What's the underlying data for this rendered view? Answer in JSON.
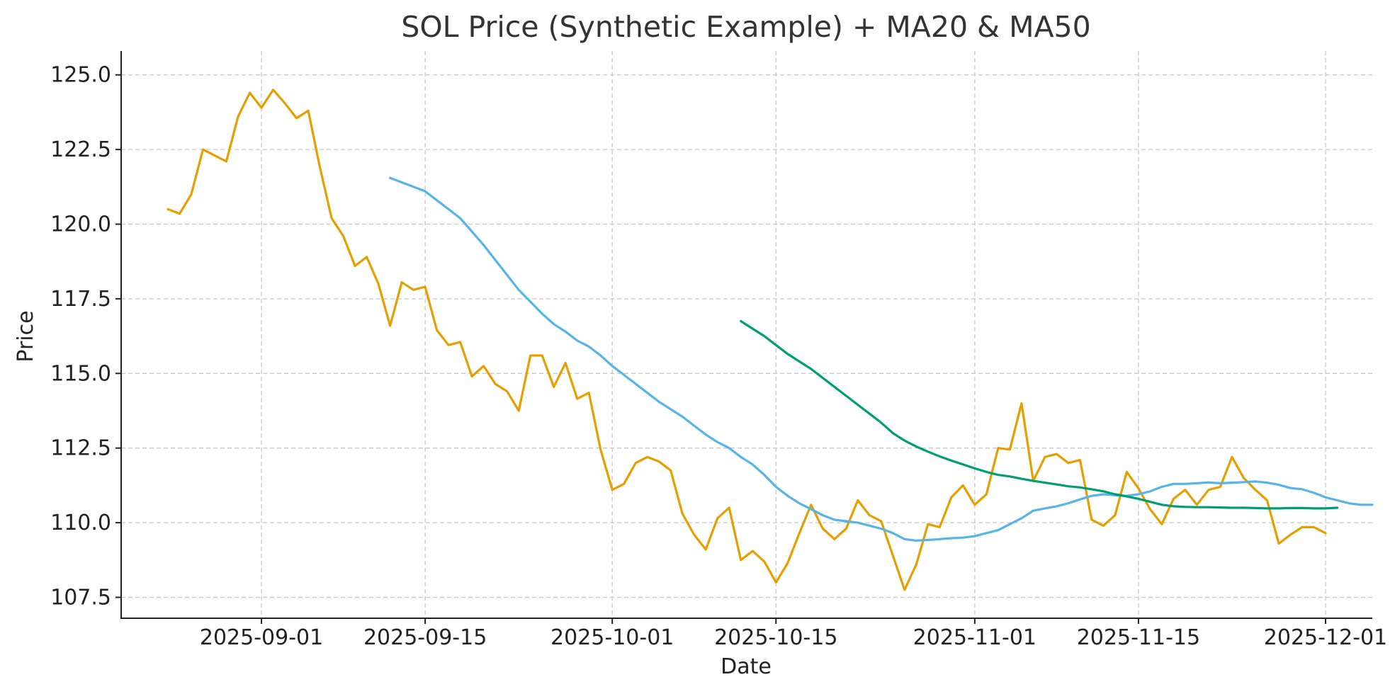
{
  "chart_data": {
    "type": "line",
    "title": "SOL Price (Synthetic Example) + MA20 & MA50",
    "xlabel": "Date",
    "ylabel": "Price",
    "x_start": "2025-08-24",
    "xlim_days": [
      -4,
      103
    ],
    "ylim": [
      106.8,
      125.8
    ],
    "yticks": [
      107.5,
      110.0,
      112.5,
      115.0,
      117.5,
      120.0,
      122.5,
      125.0
    ],
    "ytick_labels": [
      "107.5",
      "110.0",
      "112.5",
      "115.0",
      "117.5",
      "120.0",
      "122.5",
      "125.0"
    ],
    "xticks_days": [
      8,
      22,
      38,
      52,
      69,
      83,
      99
    ],
    "xtick_labels": [
      "2025-09-01",
      "2025-09-15",
      "2025-10-01",
      "2025-10-15",
      "2025-11-01",
      "2025-11-15",
      "2025-12-01"
    ],
    "grid": true,
    "series": [
      {
        "name": "Price",
        "color": "#E69F00",
        "start_day": 0,
        "values": [
          120.5,
          120.35,
          121.0,
          122.5,
          122.3,
          122.1,
          123.6,
          124.4,
          123.9,
          124.5,
          124.05,
          123.55,
          123.8,
          121.9,
          120.2,
          119.6,
          118.6,
          118.9,
          118.0,
          116.6,
          118.05,
          117.8,
          117.9,
          116.45,
          115.95,
          116.05,
          114.9,
          115.25,
          114.65,
          114.4,
          113.75,
          115.6,
          115.6,
          114.55,
          115.35,
          114.15,
          114.35,
          112.45,
          111.1,
          111.3,
          112.0,
          112.2,
          112.05,
          111.75,
          110.3,
          109.6,
          109.1,
          110.15,
          110.5,
          108.75,
          109.05,
          108.7,
          108.0,
          108.65,
          109.65,
          110.6,
          109.8,
          109.45,
          109.8,
          110.75,
          110.25,
          110.05,
          108.9,
          107.75,
          108.6,
          109.95,
          109.85,
          110.85,
          111.25,
          110.6,
          110.95,
          112.5,
          112.45,
          114.0,
          111.4,
          112.2,
          112.3,
          112.0,
          112.1,
          110.1,
          109.9,
          110.25,
          111.7,
          111.15,
          110.45,
          109.95,
          110.8,
          111.1,
          110.6,
          111.1,
          111.2,
          112.2,
          111.5,
          111.1,
          110.75,
          109.3,
          109.6,
          109.85,
          109.85,
          109.65
        ]
      },
      {
        "name": "MA20",
        "color": "#56B4E9",
        "start_day": 19,
        "values": [
          121.55,
          121.4,
          121.25,
          121.1,
          120.8,
          120.5,
          120.2,
          119.75,
          119.3,
          118.8,
          118.3,
          117.8,
          117.4,
          117.0,
          116.65,
          116.4,
          116.1,
          115.9,
          115.6,
          115.25,
          114.95,
          114.65,
          114.35,
          114.05,
          113.8,
          113.55,
          113.25,
          112.95,
          112.7,
          112.5,
          112.2,
          111.95,
          111.6,
          111.2,
          110.9,
          110.65,
          110.45,
          110.25,
          110.1,
          110.05,
          110.0,
          109.9,
          109.8,
          109.65,
          109.45,
          109.4,
          109.42,
          109.45,
          109.48,
          109.5,
          109.55,
          109.65,
          109.75,
          109.95,
          110.15,
          110.4,
          110.48,
          110.55,
          110.65,
          110.78,
          110.9,
          110.95,
          110.92,
          110.9,
          110.95,
          111.05,
          111.2,
          111.3,
          111.3,
          111.32,
          111.35,
          111.32,
          111.34,
          111.36,
          111.38,
          111.34,
          111.27,
          111.16,
          111.12,
          111.0,
          110.85,
          110.75,
          110.65,
          110.6,
          110.6
        ]
      },
      {
        "name": "MA50",
        "color": "#009E73",
        "start_day": 49,
        "values": [
          116.75,
          116.5,
          116.25,
          115.95,
          115.65,
          115.4,
          115.15,
          114.85,
          114.55,
          114.25,
          113.95,
          113.65,
          113.35,
          113.0,
          112.75,
          112.55,
          112.38,
          112.22,
          112.08,
          111.95,
          111.82,
          111.7,
          111.6,
          111.55,
          111.47,
          111.4,
          111.34,
          111.28,
          111.22,
          111.18,
          111.12,
          111.05,
          110.95,
          110.88,
          110.8,
          110.7,
          110.6,
          110.55,
          110.53,
          110.52,
          110.52,
          110.51,
          110.5,
          110.5,
          110.49,
          110.48,
          110.48,
          110.49,
          110.49,
          110.48,
          110.48,
          110.5
        ]
      }
    ]
  }
}
